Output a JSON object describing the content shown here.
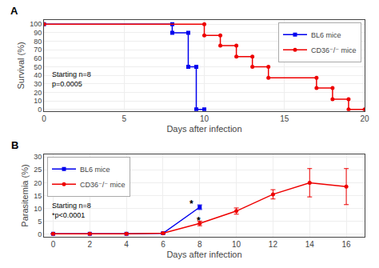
{
  "chart_data": [
    {
      "type": "line",
      "title": "A",
      "x_label": "Days after infection",
      "y_label": "Survival (%)",
      "xlim": [
        0,
        20
      ],
      "ylim": [
        -2,
        105
      ],
      "xticks": [
        0,
        5,
        10,
        15,
        20
      ],
      "yticks": [
        0,
        10,
        20,
        30,
        40,
        50,
        60,
        70,
        80,
        90,
        100
      ],
      "grid": true,
      "legend": "upper right",
      "annotations": [
        {
          "text": "Starting n=8\np=0.0005"
        }
      ],
      "series": [
        {
          "name": "BL6 mice",
          "color": "#0000EE",
          "marker": "square",
          "x": [
            0,
            8,
            8,
            9,
            9,
            9.5,
            9.5,
            10
          ],
          "values": [
            100,
            100,
            90,
            90,
            50,
            50,
            0,
            0
          ]
        },
        {
          "name": "CD36⁻/⁻ mice",
          "color": "#EE0000",
          "marker": "circle",
          "x": [
            0,
            10,
            10,
            11,
            11,
            12,
            12,
            13,
            13,
            14,
            14,
            17,
            17,
            18,
            18,
            19,
            19,
            20
          ],
          "values": [
            100,
            100,
            87,
            87,
            75,
            75,
            62,
            62,
            50,
            50,
            37,
            37,
            25,
            25,
            12,
            12,
            0,
            0
          ]
        }
      ]
    },
    {
      "type": "line",
      "title": "B",
      "x_label": "Days after infection",
      "y_label": "Parasitemia (%)",
      "xlim": [
        -0.5,
        17
      ],
      "ylim": [
        -1,
        31
      ],
      "xticks": [
        0,
        2,
        4,
        6,
        8,
        10,
        12,
        14,
        16
      ],
      "yticks": [
        0,
        5,
        10,
        15,
        20,
        25,
        30
      ],
      "grid": true,
      "legend": "upper left",
      "annotations": [
        {
          "text": "Starting n=8\n*p<0.0001"
        },
        {
          "text": "*",
          "x": 7.55,
          "y": 11.8
        },
        {
          "text": "*",
          "x": 7.95,
          "y": 5.2
        }
      ],
      "series": [
        {
          "name": "BL6 mice",
          "color": "#0000EE",
          "marker": "square",
          "x": [
            0,
            2,
            4,
            6,
            8
          ],
          "values": [
            0.15,
            0.15,
            0.15,
            0.4,
            10.5
          ],
          "errors": [
            0.08,
            0.08,
            0.08,
            0.15,
            0.9
          ]
        },
        {
          "name": "CD36⁻/⁻ mice",
          "color": "#EE0000",
          "marker": "circle",
          "x": [
            0,
            2,
            4,
            6,
            8,
            10,
            12,
            14,
            16
          ],
          "values": [
            0.15,
            0.15,
            0.15,
            0.4,
            4.2,
            9.0,
            15.5,
            20.0,
            18.5
          ],
          "errors": [
            0.08,
            0.08,
            0.08,
            0.2,
            0.9,
            1.2,
            1.8,
            5.5,
            7.0
          ]
        }
      ]
    }
  ]
}
